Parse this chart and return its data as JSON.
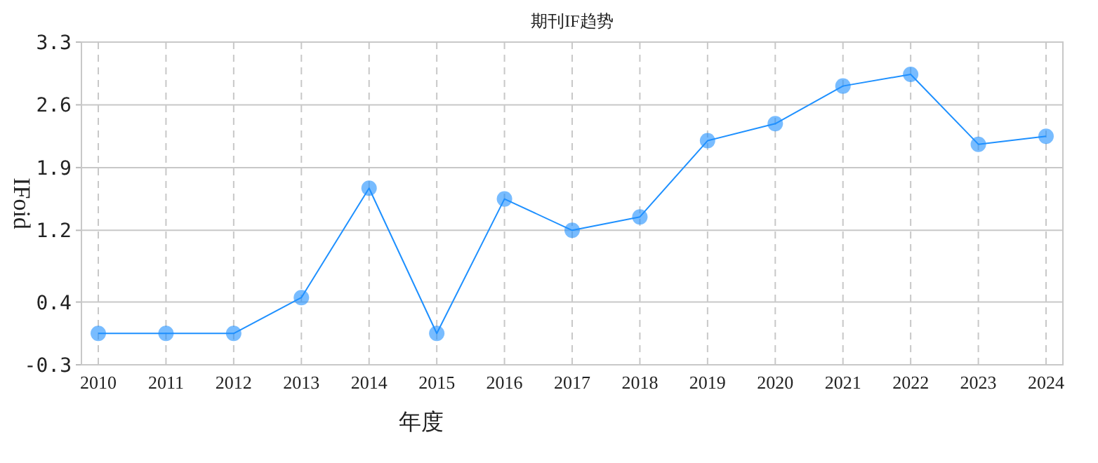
{
  "chart_data": {
    "type": "line",
    "title": "期刊IF趋势",
    "xlabel": "年度",
    "ylabel": "IFoid",
    "categories": [
      "2010",
      "2011",
      "2012",
      "2013",
      "2014",
      "2015",
      "2016",
      "2017",
      "2018",
      "2019",
      "2020",
      "2021",
      "2022",
      "2023",
      "2024"
    ],
    "series": [
      {
        "color": "#1e90ff",
        "values": [
          0.05,
          0.05,
          0.05,
          0.45,
          1.67,
          0.05,
          1.55,
          1.2,
          1.35,
          2.2,
          2.39,
          2.81,
          2.94,
          2.16,
          2.25
        ]
      }
    ],
    "ylim": [
      -0.3,
      3.3
    ],
    "yticks": [
      -0.3,
      0.4,
      1.2,
      1.9,
      2.6,
      3.3
    ],
    "grid": true,
    "marker": "circle",
    "line_style": "solid"
  }
}
